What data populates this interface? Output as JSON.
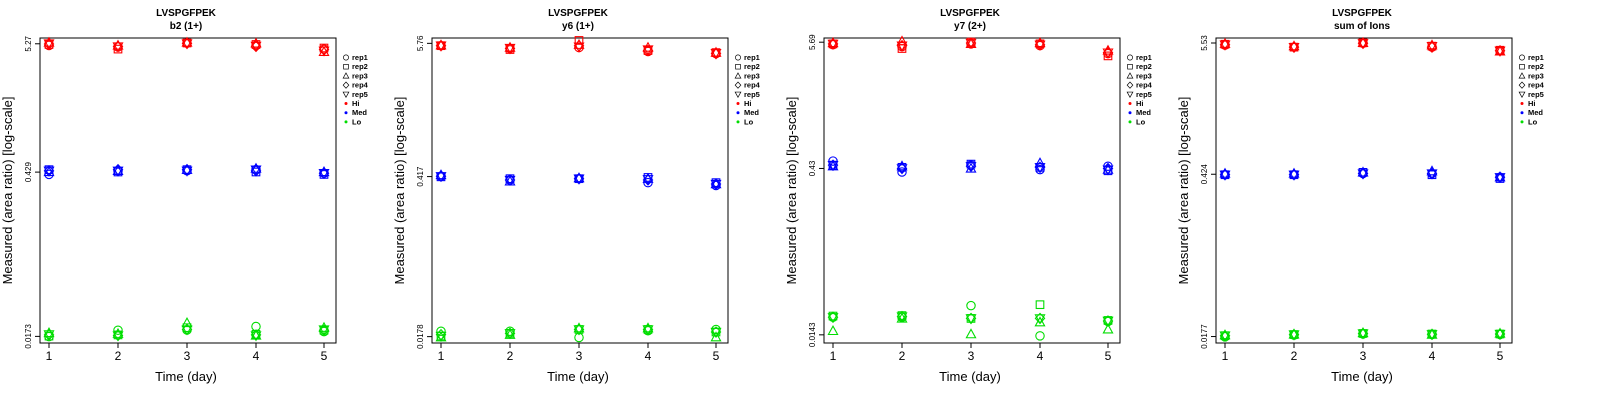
{
  "legend_entries": [
    {
      "label": "rep1",
      "symbol": "circle"
    },
    {
      "label": "rep2",
      "symbol": "square"
    },
    {
      "label": "rep3",
      "symbol": "triangle-up"
    },
    {
      "label": "rep4",
      "symbol": "diamond"
    },
    {
      "label": "rep5",
      "symbol": "triangle-down"
    },
    {
      "label": "Hi",
      "symbol": "dot",
      "color": "#ff0000"
    },
    {
      "label": "Med",
      "symbol": "dot",
      "color": "#0000ff"
    },
    {
      "label": "Lo",
      "symbol": "dot",
      "color": "#00dd00"
    }
  ],
  "colors": {
    "Hi": "#ff0000",
    "Med": "#0000ff",
    "Lo": "#00dd00"
  },
  "chart_data": [
    {
      "type": "scatter",
      "title": "LVSPGFPEK",
      "subtitle": "b2 (1+)",
      "xlabel": "Time (day)",
      "ylabel": "Measured (area ratio) [log-scale]",
      "y_scale": "log",
      "x_ticks": [
        1,
        2,
        3,
        4,
        5
      ],
      "y_ticks": [
        0.0173,
        0.429,
        5.27
      ],
      "y_tick_labels": [
        "0.0173",
        "0.429",
        "5.27"
      ],
      "ylim": [
        0.0152,
        5.9
      ],
      "series": [
        {
          "name": "Hi",
          "group": "Hi",
          "points": [
            {
              "x": 1,
              "values": [
                5.1,
                5.2,
                5.4,
                5.25,
                5.3
              ]
            },
            {
              "x": 2,
              "values": [
                4.95,
                4.75,
                5.1,
                5.0,
                5.0
              ]
            },
            {
              "x": 3,
              "values": [
                5.35,
                5.35,
                5.4,
                5.3,
                5.3
              ]
            },
            {
              "x": 4,
              "values": [
                5.1,
                5.2,
                5.3,
                5.0,
                5.05
              ]
            },
            {
              "x": 5,
              "values": [
                4.75,
                4.85,
                4.5,
                4.7,
                4.6
              ]
            }
          ]
        },
        {
          "name": "Med",
          "group": "Med",
          "points": [
            {
              "x": 1,
              "values": [
                0.41,
                0.45,
                0.43,
                0.44,
                0.44
              ]
            },
            {
              "x": 2,
              "values": [
                0.44,
                0.43,
                0.44,
                0.45,
                0.44
              ]
            },
            {
              "x": 3,
              "values": [
                0.44,
                0.45,
                0.45,
                0.45,
                0.44
              ]
            },
            {
              "x": 4,
              "values": [
                0.45,
                0.43,
                0.46,
                0.44,
                0.45
              ]
            },
            {
              "x": 5,
              "values": [
                0.42,
                0.41,
                0.43,
                0.42,
                0.42
              ]
            }
          ]
        },
        {
          "name": "Lo",
          "group": "Lo",
          "points": [
            {
              "x": 1,
              "values": [
                0.0172,
                0.0174,
                0.0185,
                0.0178,
                0.018
              ]
            },
            {
              "x": 2,
              "values": [
                0.0195,
                0.0178,
                0.0182,
                0.0176,
                0.0176
              ]
            },
            {
              "x": 3,
              "values": [
                0.0196,
                0.0205,
                0.0225,
                0.0198,
                0.0198
              ]
            },
            {
              "x": 4,
              "values": [
                0.021,
                0.018,
                0.0176,
                0.0178,
                0.0176
              ]
            },
            {
              "x": 5,
              "values": [
                0.019,
                0.0195,
                0.0205,
                0.0195,
                0.0198
              ]
            }
          ]
        }
      ]
    },
    {
      "type": "scatter",
      "title": "LVSPGFPEK",
      "subtitle": "y6 (1+)",
      "xlabel": "Time (day)",
      "ylabel": "Measured (area ratio) [log-scale]",
      "y_scale": "log",
      "x_ticks": [
        1,
        2,
        3,
        4,
        5
      ],
      "y_ticks": [
        0.0178,
        0.417,
        5.76
      ],
      "y_tick_labels": [
        "0.0178",
        "0.417",
        "5.76"
      ],
      "ylim": [
        0.0157,
        6.4
      ],
      "series": [
        {
          "name": "Hi",
          "group": "Hi",
          "points": [
            {
              "x": 1,
              "values": [
                5.5,
                5.5,
                5.55,
                5.5,
                5.5
              ]
            },
            {
              "x": 2,
              "values": [
                5.2,
                5.1,
                5.3,
                5.2,
                5.25
              ]
            },
            {
              "x": 3,
              "values": [
                5.3,
                6.1,
                5.6,
                5.5,
                5.4
              ]
            },
            {
              "x": 4,
              "values": [
                4.9,
                5.0,
                5.3,
                5.0,
                5.1
              ]
            },
            {
              "x": 5,
              "values": [
                4.7,
                4.8,
                4.8,
                4.7,
                4.75
              ]
            }
          ]
        },
        {
          "name": "Med",
          "group": "Med",
          "points": [
            {
              "x": 1,
              "values": [
                0.42,
                0.415,
                0.43,
                0.42,
                0.42
              ]
            },
            {
              "x": 2,
              "values": [
                0.39,
                0.4,
                0.38,
                0.39,
                0.39
              ]
            },
            {
              "x": 3,
              "values": [
                0.4,
                0.4,
                0.405,
                0.4,
                0.4
              ]
            },
            {
              "x": 4,
              "values": [
                0.37,
                0.41,
                0.4,
                0.39,
                0.395
              ]
            },
            {
              "x": 5,
              "values": [
                0.35,
                0.37,
                0.36,
                0.36,
                0.36
              ]
            }
          ]
        },
        {
          "name": "Lo",
          "group": "Lo",
          "points": [
            {
              "x": 1,
              "values": [
                0.0198,
                0.018,
                0.0176,
                0.0185,
                0.018
              ]
            },
            {
              "x": 2,
              "values": [
                0.0198,
                0.019,
                0.0185,
                0.019,
                0.019
              ]
            },
            {
              "x": 3,
              "values": [
                0.0175,
                0.0205,
                0.021,
                0.0205,
                0.0205
              ]
            },
            {
              "x": 4,
              "values": [
                0.02,
                0.0205,
                0.021,
                0.0205,
                0.0205
              ]
            },
            {
              "x": 5,
              "values": [
                0.0205,
                0.0195,
                0.0176,
                0.0195,
                0.0195
              ]
            }
          ]
        }
      ]
    },
    {
      "type": "scatter",
      "title": "LVSPGFPEK",
      "subtitle": "y7 (2+)",
      "xlabel": "Time (day)",
      "ylabel": "Measured (area ratio) [log-scale]",
      "y_scale": "log",
      "x_ticks": [
        1,
        2,
        3,
        4,
        5
      ],
      "y_ticks": [
        0.0143,
        0.43,
        5.69
      ],
      "y_tick_labels": [
        "0.0143",
        "0.43",
        "5.69"
      ],
      "ylim": [
        0.0121,
        6.2
      ],
      "series": [
        {
          "name": "Hi",
          "group": "Hi",
          "points": [
            {
              "x": 1,
              "values": [
                5.4,
                5.5,
                5.6,
                5.5,
                5.5
              ]
            },
            {
              "x": 2,
              "values": [
                5.2,
                5.0,
                5.8,
                5.3,
                5.3
              ]
            },
            {
              "x": 3,
              "values": [
                5.5,
                5.7,
                5.5,
                5.6,
                5.6
              ]
            },
            {
              "x": 4,
              "values": [
                5.3,
                5.5,
                5.6,
                5.4,
                5.4
              ]
            },
            {
              "x": 5,
              "values": [
                4.5,
                4.3,
                4.8,
                4.6,
                4.6
              ]
            }
          ]
        },
        {
          "name": "Med",
          "group": "Med",
          "points": [
            {
              "x": 1,
              "values": [
                0.5,
                0.46,
                0.45,
                0.46,
                0.46
              ]
            },
            {
              "x": 2,
              "values": [
                0.4,
                0.44,
                0.45,
                0.43,
                0.43
              ]
            },
            {
              "x": 3,
              "values": [
                0.46,
                0.47,
                0.43,
                0.45,
                0.45
              ]
            },
            {
              "x": 4,
              "values": [
                0.42,
                0.44,
                0.48,
                0.44,
                0.44
              ]
            },
            {
              "x": 5,
              "values": [
                0.45,
                0.41,
                0.42,
                0.43,
                0.42
              ]
            }
          ]
        },
        {
          "name": "Lo",
          "group": "Lo",
          "points": [
            {
              "x": 1,
              "values": [
                0.0205,
                0.021,
                0.0155,
                0.0205,
                0.0205
              ]
            },
            {
              "x": 2,
              "values": [
                0.0205,
                0.0212,
                0.02,
                0.0208,
                0.0208
              ]
            },
            {
              "x": 3,
              "values": [
                0.026,
                0.02,
                0.0145,
                0.02,
                0.02
              ]
            },
            {
              "x": 4,
              "values": [
                0.014,
                0.0265,
                0.0185,
                0.02,
                0.02
              ]
            },
            {
              "x": 5,
              "values": [
                0.0188,
                0.0192,
                0.016,
                0.019,
                0.019
              ]
            }
          ]
        }
      ]
    },
    {
      "type": "scatter",
      "title": "LVSPGFPEK",
      "subtitle": "sum of Ions",
      "xlabel": "Time (day)",
      "ylabel": "Measured (area ratio) [log-scale]",
      "y_scale": "log",
      "x_ticks": [
        1,
        2,
        3,
        4,
        5
      ],
      "y_ticks": [
        0.0177,
        0.424,
        5.53
      ],
      "y_tick_labels": [
        "0.0177",
        "0.424",
        "5.53"
      ],
      "ylim": [
        0.0156,
        6.1
      ],
      "series": [
        {
          "name": "Hi",
          "group": "Hi",
          "points": [
            {
              "x": 1,
              "values": [
                5.3,
                5.4,
                5.45,
                5.35,
                5.35
              ]
            },
            {
              "x": 2,
              "values": [
                5.1,
                5.1,
                5.2,
                5.1,
                5.1
              ]
            },
            {
              "x": 3,
              "values": [
                5.5,
                5.55,
                5.55,
                5.5,
                5.5
              ]
            },
            {
              "x": 4,
              "values": [
                5.1,
                5.2,
                5.3,
                5.1,
                5.2
              ]
            },
            {
              "x": 5,
              "values": [
                4.75,
                4.8,
                4.7,
                4.75,
                4.75
              ]
            }
          ]
        },
        {
          "name": "Med",
          "group": "Med",
          "points": [
            {
              "x": 1,
              "values": [
                0.42,
                0.42,
                0.43,
                0.42,
                0.42
              ]
            },
            {
              "x": 2,
              "values": [
                0.42,
                0.42,
                0.43,
                0.42,
                0.42
              ]
            },
            {
              "x": 3,
              "values": [
                0.43,
                0.44,
                0.44,
                0.43,
                0.43
              ]
            },
            {
              "x": 4,
              "values": [
                0.43,
                0.42,
                0.45,
                0.43,
                0.43
              ]
            },
            {
              "x": 5,
              "values": [
                0.4,
                0.39,
                0.4,
                0.4,
                0.4
              ]
            }
          ]
        },
        {
          "name": "Lo",
          "group": "Lo",
          "points": [
            {
              "x": 1,
              "values": [
                0.0176,
                0.018,
                0.0182,
                0.018,
                0.018
              ]
            },
            {
              "x": 2,
              "values": [
                0.0182,
                0.0184,
                0.0185,
                0.0184,
                0.0184
              ]
            },
            {
              "x": 3,
              "values": [
                0.0186,
                0.0188,
                0.019,
                0.0188,
                0.0188
              ]
            },
            {
              "x": 4,
              "values": [
                0.0184,
                0.0186,
                0.0184,
                0.0185,
                0.0185
              ]
            },
            {
              "x": 5,
              "values": [
                0.0184,
                0.0186,
                0.0188,
                0.0186,
                0.0186
              ]
            }
          ]
        }
      ]
    }
  ]
}
